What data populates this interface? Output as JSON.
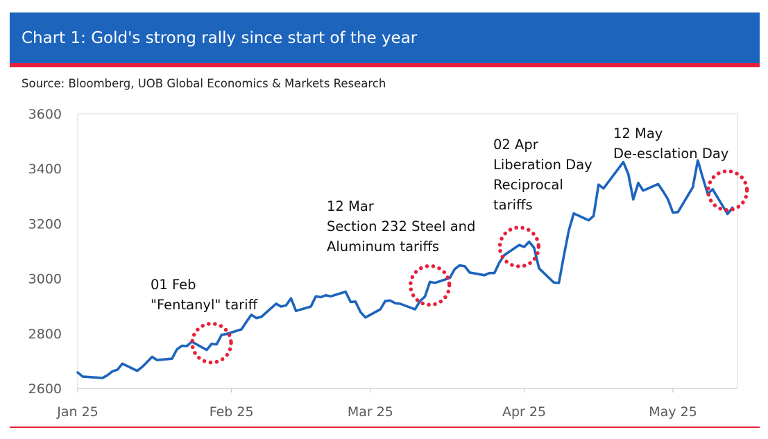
{
  "header": {
    "title": "Chart 1: Gold's strong rally since start of the year"
  },
  "source": "Source: Bloomberg, UOB Global Economics & Markets Research",
  "colors": {
    "header_bg": "#1d64bd",
    "accent_red": "#e8203a",
    "line": "#1d64bd",
    "marker": "#e8203a"
  },
  "chart_data": {
    "type": "line",
    "title": "",
    "xlabel": "",
    "ylabel": "",
    "ylim": [
      2600,
      3600
    ],
    "yticks": [
      2600,
      2800,
      3000,
      3200,
      3400,
      3600
    ],
    "grid": false,
    "xticks": [
      {
        "label": "Jan 25",
        "date": "2025-01-01"
      },
      {
        "label": "Feb 25",
        "date": "2025-02-01"
      },
      {
        "label": "Mar 25",
        "date": "2025-03-01"
      },
      {
        "label": "Apr 25",
        "date": "2025-04-01"
      },
      {
        "label": "May 25",
        "date": "2025-05-01"
      }
    ],
    "series": [
      {
        "name": "",
        "points": [
          [
            "2025-01-01",
            2658
          ],
          [
            "2025-01-02",
            2643
          ],
          [
            "2025-01-06",
            2638
          ],
          [
            "2025-01-07",
            2648
          ],
          [
            "2025-01-08",
            2662
          ],
          [
            "2025-01-09",
            2668
          ],
          [
            "2025-01-10",
            2690
          ],
          [
            "2025-01-13",
            2664
          ],
          [
            "2025-01-14",
            2678
          ],
          [
            "2025-01-16",
            2715
          ],
          [
            "2025-01-17",
            2703
          ],
          [
            "2025-01-20",
            2708
          ],
          [
            "2025-01-21",
            2742
          ],
          [
            "2025-01-22",
            2755
          ],
          [
            "2025-01-23",
            2754
          ],
          [
            "2025-01-24",
            2770
          ],
          [
            "2025-01-27",
            2740
          ],
          [
            "2025-01-28",
            2762
          ],
          [
            "2025-01-29",
            2760
          ],
          [
            "2025-01-30",
            2795
          ],
          [
            "2025-01-31",
            2798
          ],
          [
            "2025-02-03",
            2815
          ],
          [
            "2025-02-04",
            2842
          ],
          [
            "2025-02-05",
            2868
          ],
          [
            "2025-02-06",
            2856
          ],
          [
            "2025-02-07",
            2860
          ],
          [
            "2025-02-10",
            2908
          ],
          [
            "2025-02-11",
            2898
          ],
          [
            "2025-02-12",
            2902
          ],
          [
            "2025-02-13",
            2928
          ],
          [
            "2025-02-14",
            2882
          ],
          [
            "2025-02-17",
            2898
          ],
          [
            "2025-02-18",
            2935
          ],
          [
            "2025-02-19",
            2932
          ],
          [
            "2025-02-20",
            2939
          ],
          [
            "2025-02-21",
            2935
          ],
          [
            "2025-02-24",
            2952
          ],
          [
            "2025-02-25",
            2915
          ],
          [
            "2025-02-26",
            2916
          ],
          [
            "2025-02-27",
            2878
          ],
          [
            "2025-02-28",
            2858
          ],
          [
            "2025-03-03",
            2888
          ],
          [
            "2025-03-04",
            2918
          ],
          [
            "2025-03-05",
            2920
          ],
          [
            "2025-03-06",
            2910
          ],
          [
            "2025-03-07",
            2908
          ],
          [
            "2025-03-10",
            2888
          ],
          [
            "2025-03-11",
            2918
          ],
          [
            "2025-03-12",
            2934
          ],
          [
            "2025-03-13",
            2988
          ],
          [
            "2025-03-14",
            2984
          ],
          [
            "2025-03-17",
            3002
          ],
          [
            "2025-03-18",
            3034
          ],
          [
            "2025-03-19",
            3048
          ],
          [
            "2025-03-20",
            3045
          ],
          [
            "2025-03-21",
            3022
          ],
          [
            "2025-03-24",
            3012
          ],
          [
            "2025-03-25",
            3020
          ],
          [
            "2025-03-26",
            3020
          ],
          [
            "2025-03-27",
            3058
          ],
          [
            "2025-03-28",
            3085
          ],
          [
            "2025-03-31",
            3122
          ],
          [
            "2025-04-01",
            3115
          ],
          [
            "2025-04-02",
            3134
          ],
          [
            "2025-04-03",
            3112
          ],
          [
            "2025-04-04",
            3037
          ],
          [
            "2025-04-07",
            2985
          ],
          [
            "2025-04-08",
            2984
          ],
          [
            "2025-04-09",
            3082
          ],
          [
            "2025-04-10",
            3175
          ],
          [
            "2025-04-11",
            3237
          ],
          [
            "2025-04-14",
            3212
          ],
          [
            "2025-04-15",
            3228
          ],
          [
            "2025-04-16",
            3342
          ],
          [
            "2025-04-17",
            3328
          ],
          [
            "2025-04-21",
            3424
          ],
          [
            "2025-04-22",
            3380
          ],
          [
            "2025-04-23",
            3288
          ],
          [
            "2025-04-24",
            3348
          ],
          [
            "2025-04-25",
            3320
          ],
          [
            "2025-04-28",
            3344
          ],
          [
            "2025-04-29",
            3318
          ],
          [
            "2025-04-30",
            3288
          ],
          [
            "2025-05-01",
            3240
          ],
          [
            "2025-05-02",
            3242
          ],
          [
            "2025-05-05",
            3332
          ],
          [
            "2025-05-06",
            3430
          ],
          [
            "2025-05-07",
            3368
          ],
          [
            "2025-05-08",
            3308
          ],
          [
            "2025-05-09",
            3325
          ],
          [
            "2025-05-12",
            3235
          ],
          [
            "2025-05-13",
            3258
          ]
        ]
      }
    ],
    "annotations": [
      {
        "date_label": "01 Feb",
        "lines": [
          "\"Fentanyl\" tariff"
        ],
        "marker_date": "2025-01-28",
        "marker_value": 2765
      },
      {
        "date_label": "12 Mar",
        "lines": [
          "Section 232 Steel and",
          "Aluminum tariffs"
        ],
        "marker_date": "2025-03-13",
        "marker_value": 2975
      },
      {
        "date_label": "02 Apr",
        "lines": [
          "Liberation Day",
          "Reciprocal",
          "tariffs"
        ],
        "marker_date": "2025-03-31",
        "marker_value": 3115
      },
      {
        "date_label": "12 May",
        "lines": [
          "De-esclation Day"
        ],
        "marker_date": "2025-05-12",
        "marker_value": 3320
      }
    ]
  }
}
